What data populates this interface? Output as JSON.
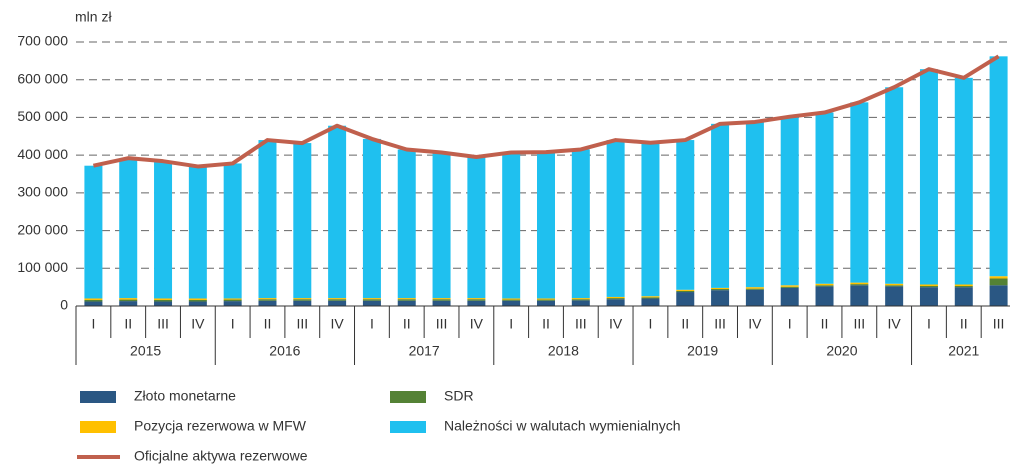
{
  "chart_data": {
    "type": "bar",
    "y_label": "mln zł",
    "categories": [
      "I",
      "II",
      "III",
      "IV",
      "I",
      "II",
      "III",
      "IV",
      "I",
      "II",
      "III",
      "IV",
      "I",
      "II",
      "III",
      "IV",
      "I",
      "II",
      "III",
      "IV",
      "I",
      "II",
      "III",
      "IV",
      "I",
      "II",
      "III"
    ],
    "years": [
      "2015",
      "2016",
      "2017",
      "2018",
      "2019",
      "2020",
      "2021"
    ],
    "stacked": true,
    "series": [
      {
        "name": "Złoto monetarne",
        "color": "#2a5783",
        "values": [
          12000,
          13000,
          12000,
          12000,
          13000,
          14000,
          14000,
          14000,
          14000,
          14000,
          14000,
          14000,
          14000,
          14000,
          15000,
          18000,
          20000,
          37000,
          42000,
          43000,
          48000,
          52000,
          55000,
          52000,
          50000,
          50000,
          55000
        ]
      },
      {
        "name": "SDR",
        "color": "#548235",
        "values": [
          4000,
          4000,
          4000,
          4000,
          4000,
          4000,
          4000,
          4000,
          4000,
          4000,
          4000,
          4000,
          3000,
          3000,
          3000,
          3000,
          3000,
          3000,
          3000,
          3000,
          3000,
          3000,
          3000,
          3000,
          3000,
          3000,
          18000
        ]
      },
      {
        "name": "Pozycja rezerwowa w MFW",
        "color": "#ffc000",
        "values": [
          4000,
          4000,
          4000,
          4000,
          3000,
          3000,
          3000,
          3000,
          3000,
          3000,
          3000,
          3000,
          3000,
          3000,
          3000,
          3000,
          3000,
          3000,
          3000,
          4000,
          4000,
          4000,
          4000,
          4000,
          4000,
          4000,
          6000
        ]
      },
      {
        "name": "Należności w walutach wymienialnych",
        "color": "#1fc0ef",
        "values": [
          352000,
          371000,
          364000,
          350000,
          358000,
          419000,
          411000,
          457000,
          422000,
          394000,
          386000,
          374000,
          387000,
          388000,
          394000,
          416000,
          407000,
          397000,
          435000,
          438000,
          447000,
          454000,
          478000,
          521000,
          571000,
          548000,
          583000
        ]
      },
      {
        "name": "Oficjalne aktywa rezerwowe",
        "type": "line",
        "color": "#c0604d",
        "values": [
          372000,
          392000,
          384000,
          370000,
          378000,
          440000,
          432000,
          478000,
          443000,
          415000,
          407000,
          395000,
          407000,
          408000,
          415000,
          440000,
          433000,
          440000,
          483000,
          488000,
          502000,
          513000,
          540000,
          580000,
          628000,
          605000,
          662000
        ]
      }
    ],
    "ylim": [
      0,
      700000
    ],
    "yticks": [
      0,
      {
        "value": 100000,
        "label": "100 000"
      },
      {
        "value": 200000,
        "label": "200 000"
      },
      {
        "value": 300000,
        "label": "300 000"
      },
      {
        "value": 400000,
        "label": "400 000"
      },
      {
        "value": 500000,
        "label": "500 000"
      },
      {
        "value": 600000,
        "label": "600 000"
      },
      {
        "value": 700000,
        "label": "700 000"
      }
    ],
    "grid": true
  }
}
